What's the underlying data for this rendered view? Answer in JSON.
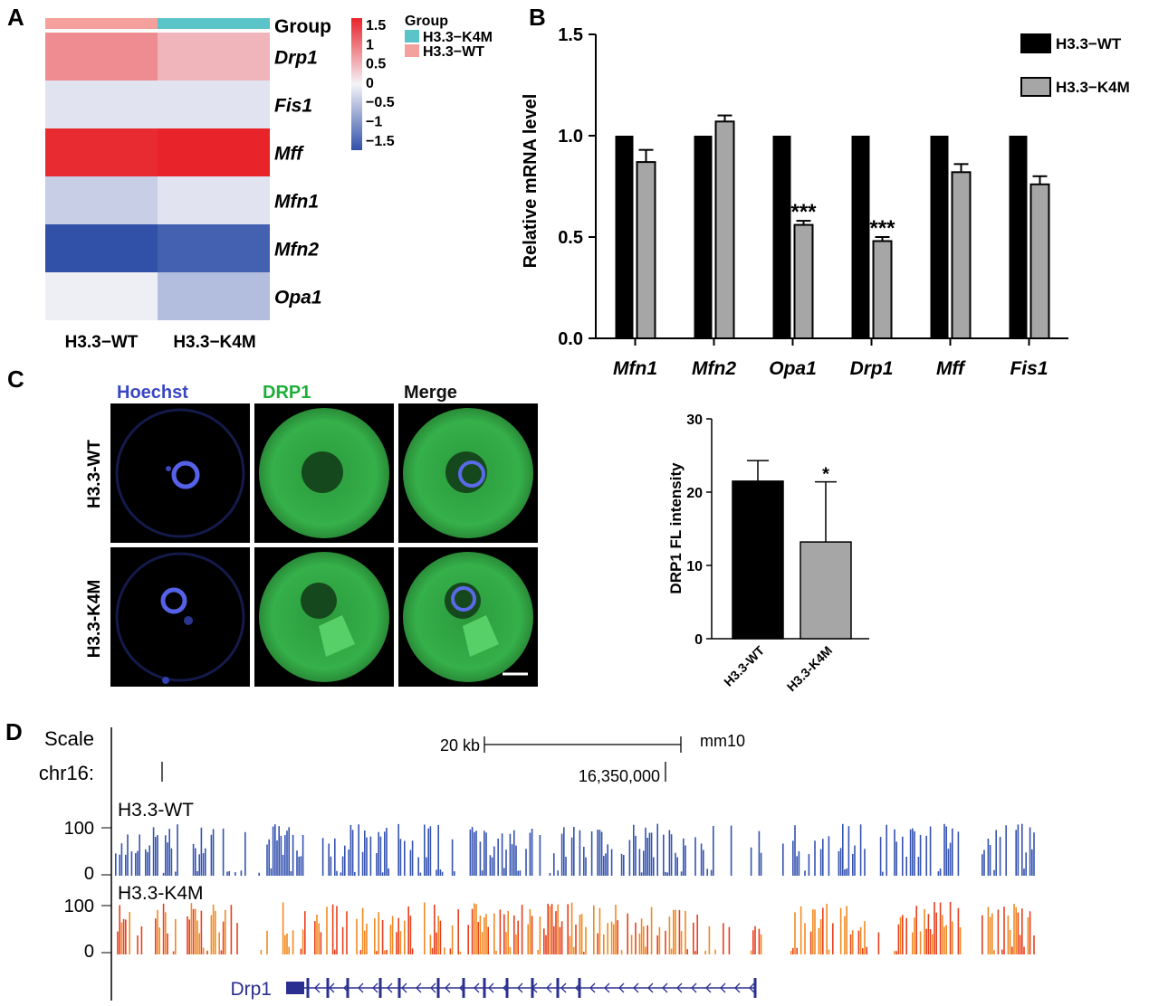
{
  "panels": {
    "A": {
      "letter": "A",
      "columns": [
        "H3.3−WT",
        "H3.3−K4M"
      ],
      "group_bar_label": "Group",
      "group_colors": [
        "#f4a09c",
        "#5bc4c8"
      ],
      "rows": [
        "Drp1",
        "Fis1",
        "Mff",
        "Mfn1",
        "Mfn2",
        "Opa1"
      ],
      "colorbar": {
        "ticks": [
          "1.5",
          "1",
          "0.5",
          "0",
          "−0.5",
          "−1",
          "−1.5"
        ],
        "colors": {
          "high": "#e8232a",
          "mid": "#f4f4f8",
          "low": "#3150a8"
        }
      },
      "legend": {
        "title": "Group",
        "items": [
          {
            "label": "H3.3−K4M",
            "color": "#5bc4c8"
          },
          {
            "label": "H3.3−WT",
            "color": "#f4a09c"
          }
        ]
      }
    },
    "B": {
      "letter": "B"
    },
    "C": {
      "letter": "C",
      "channels": [
        {
          "label": "Hoechst",
          "color": "#3a47c4"
        },
        {
          "label": "DRP1",
          "color": "#1fae3a"
        },
        {
          "label": "Merge",
          "color": "#111111"
        }
      ],
      "rows": [
        "H3.3-WT",
        "H3.3-K4M"
      ]
    },
    "D": {
      "letter": "D",
      "scale_label": "Scale",
      "chr_label": "chr16:",
      "scale_bar_label": "20 kb",
      "assembly": "mm10",
      "coord_label": "16,350,000",
      "tracks": [
        {
          "name": "H3.3-WT",
          "max": "100",
          "min": "0",
          "color": "#3553b0"
        },
        {
          "name": "H3.3-K4M",
          "max": "100",
          "min": "0",
          "color": "#f08a24"
        }
      ],
      "gene": {
        "name": "Drp1",
        "color": "#2b2f8f"
      }
    }
  },
  "chart_data": [
    {
      "type": "heatmap",
      "panel": "A",
      "x": [
        "H3.3−WT",
        "H3.3−K4M"
      ],
      "y": [
        "Drp1",
        "Fis1",
        "Mff",
        "Mfn1",
        "Mfn2",
        "Opa1"
      ],
      "values": [
        [
          0.75,
          0.45
        ],
        [
          -0.15,
          -0.15
        ],
        [
          1.45,
          1.5
        ],
        [
          -0.35,
          -0.15
        ],
        [
          -1.5,
          -1.35
        ],
        [
          -0.05,
          -0.5
        ]
      ],
      "zlim": [
        -1.5,
        1.5
      ]
    },
    {
      "type": "bar",
      "panel": "B",
      "categories": [
        "Mfn1",
        "Mfn2",
        "Opa1",
        "Drp1",
        "Mff",
        "Fis1"
      ],
      "series": [
        {
          "name": "H3.3−WT",
          "values": [
            1.0,
            1.0,
            1.0,
            1.0,
            1.0,
            1.0
          ],
          "errors": [
            0,
            0,
            0,
            0,
            0,
            0
          ],
          "color": "#000000"
        },
        {
          "name": "H3.3−K4M",
          "values": [
            0.87,
            1.07,
            0.56,
            0.48,
            0.82,
            0.76
          ],
          "errors": [
            0.06,
            0.03,
            0.02,
            0.02,
            0.04,
            0.04
          ],
          "color": "#a6a6a6"
        }
      ],
      "significance": [
        "",
        "",
        "***",
        "***",
        "",
        ""
      ],
      "ylabel": "Relative mRNA level",
      "ylim": [
        0,
        1.5
      ],
      "yticks": [
        "0.0",
        "0.5",
        "1.0",
        "1.5"
      ]
    },
    {
      "type": "bar",
      "panel": "C",
      "categories": [
        "H3.3-WT",
        "H3.3-K4M"
      ],
      "values": [
        21.5,
        13.2
      ],
      "errors": [
        2.8,
        8.2
      ],
      "colors": [
        "#000000",
        "#a6a6a6"
      ],
      "significance": [
        "",
        "*"
      ],
      "ylabel": "DRP1 FL intensity",
      "ylim": [
        0,
        30
      ],
      "yticks": [
        "0",
        "10",
        "20",
        "30"
      ]
    }
  ]
}
